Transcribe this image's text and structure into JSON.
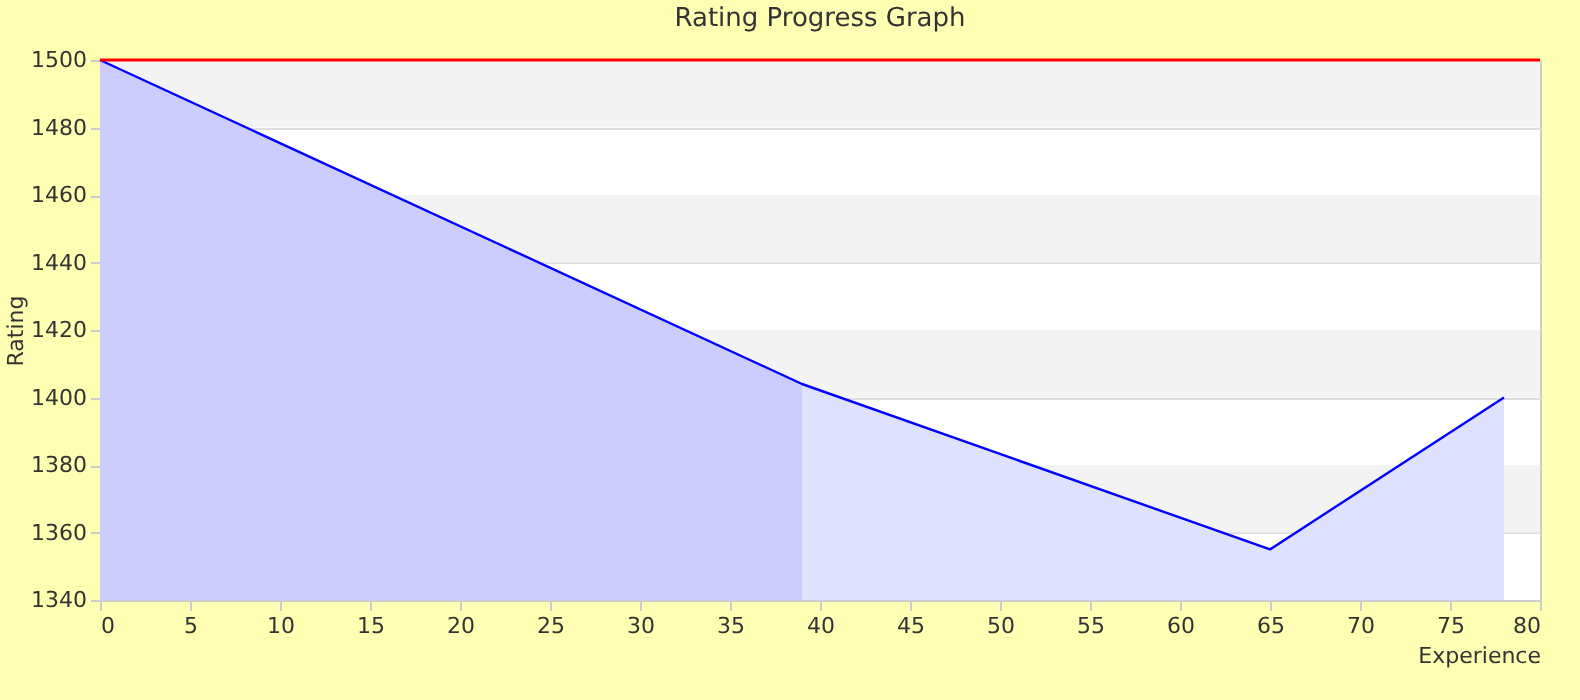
{
  "chart_data": {
    "type": "area",
    "title": "Rating Progress Graph",
    "xlabel": "Experience",
    "ylabel": "Rating",
    "xlim": [
      0,
      80
    ],
    "xticks": [
      0,
      5,
      10,
      15,
      20,
      25,
      30,
      35,
      40,
      45,
      50,
      55,
      60,
      65,
      70,
      75,
      80
    ],
    "ylim": [
      1340,
      1500
    ],
    "yticks": [
      1340,
      1360,
      1380,
      1400,
      1420,
      1440,
      1460,
      1480,
      1500
    ],
    "grid": "y",
    "series": [
      {
        "color": "#ccccff",
        "x": [
          0,
          39
        ],
        "values": [
          1500,
          1404
        ]
      },
      {
        "color": "#e0e0ff",
        "x": [
          39,
          65,
          78
        ],
        "values": [
          1404,
          1355,
          1400
        ]
      },
      {
        "type": "line",
        "color": "#0000ff",
        "x": [
          0,
          39,
          65,
          78
        ],
        "values": [
          1500,
          1404,
          1355,
          1400
        ]
      }
    ],
    "bands": [
      {
        "axis": "y",
        "from": 1360,
        "to": 1380,
        "color": "#f3f3f3"
      },
      {
        "axis": "y",
        "from": 1400,
        "to": 1420,
        "color": "#f3f3f3"
      },
      {
        "axis": "y",
        "from": 1440,
        "to": 1460,
        "color": "#f3f3f3"
      },
      {
        "axis": "y",
        "from": 1480,
        "to": 1500,
        "color": "#f3f3f3"
      }
    ],
    "ref_lines": [
      {
        "axis": "y",
        "value": 1500,
        "color": "#ff0000"
      }
    ]
  }
}
